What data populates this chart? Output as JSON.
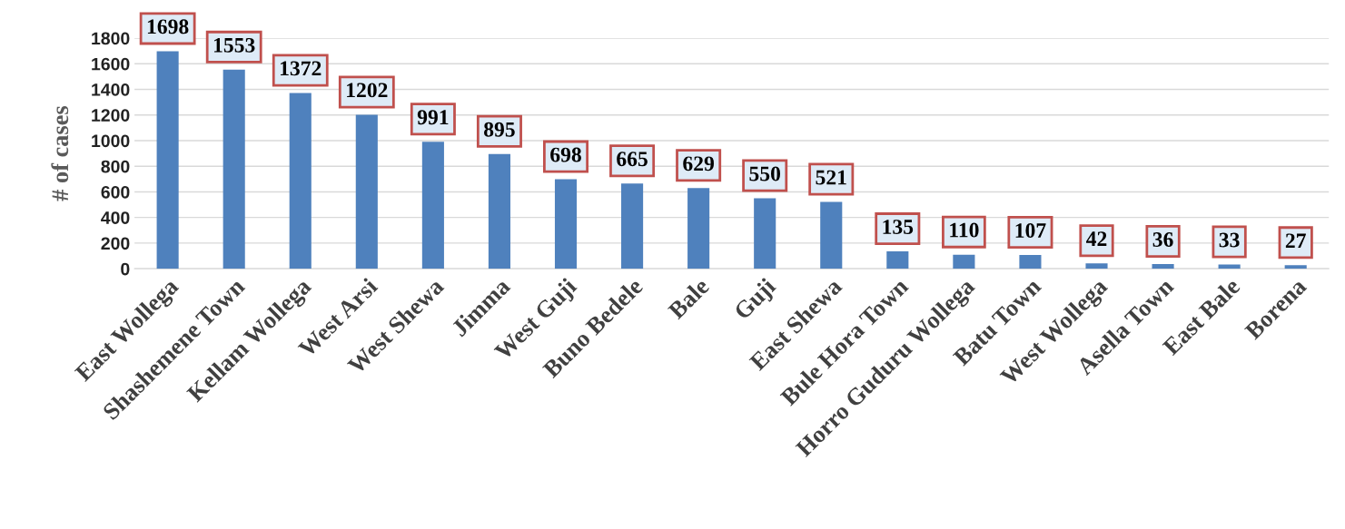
{
  "chart_data": {
    "type": "bar",
    "ylabel": "# of cases",
    "categories": [
      "East Wollega",
      "Shashemene Town",
      "Kellam Wollega",
      "West Arsi",
      "West Shewa",
      "Jimma",
      "West Guji",
      "Buno Bedele",
      "Bale",
      "Guji",
      "East Shewa",
      "Bule Hora Town",
      "Horro Guduru Wollega",
      "Batu Town",
      "West Wollega",
      "Asella Town",
      "East Bale",
      "Borena"
    ],
    "values": [
      1698,
      1553,
      1372,
      1202,
      991,
      895,
      698,
      665,
      629,
      550,
      521,
      135,
      110,
      107,
      42,
      36,
      33,
      27
    ],
    "color": "#4f81bd",
    "ylim": [
      0,
      1800
    ],
    "yticks": [
      0,
      200,
      400,
      600,
      800,
      1000,
      1200,
      1400,
      1600,
      1800
    ],
    "grid": "y",
    "data_labels": true
  }
}
